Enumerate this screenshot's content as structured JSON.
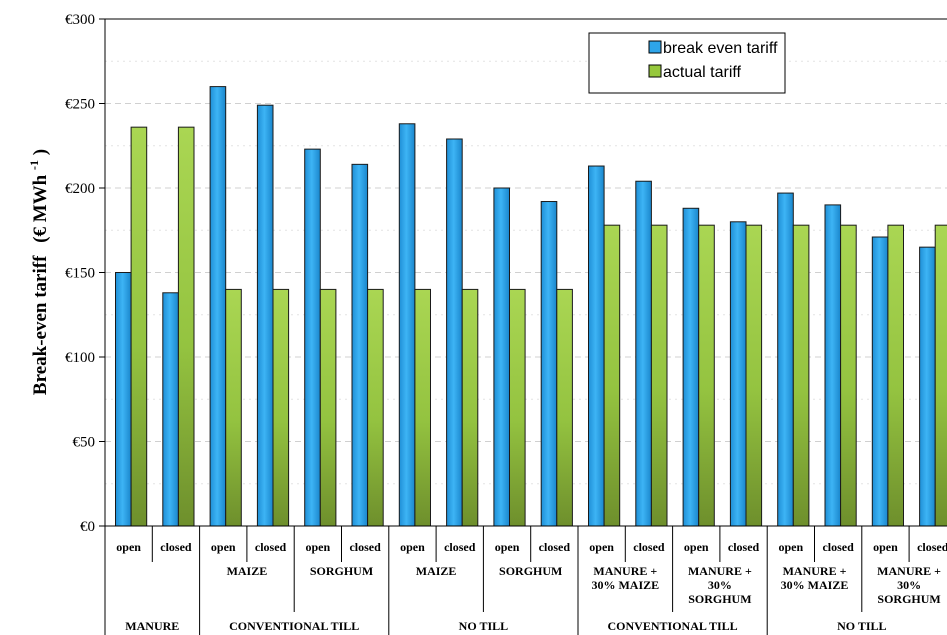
{
  "chart_data": {
    "type": "bar",
    "ylabel": "Break-even tariff",
    "ylabel_unit": "(€ MWh",
    "ylabel_sup": "-1",
    "ylabel_close": ")",
    "ylim": [
      0,
      300
    ],
    "yticks": [
      {
        "value": 0,
        "label": "€0"
      },
      {
        "value": 50,
        "label": "€50"
      },
      {
        "value": 100,
        "label": "€100"
      },
      {
        "value": 150,
        "label": "€150"
      },
      {
        "value": 200,
        "label": "€200"
      },
      {
        "value": 250,
        "label": "€250"
      },
      {
        "value": 300,
        "label": "€300"
      }
    ],
    "grid": true,
    "legend_position": "top-right",
    "categories": [
      "open",
      "closed",
      "open",
      "closed",
      "open",
      "closed",
      "open",
      "closed",
      "open",
      "closed",
      "open",
      "closed",
      "open",
      "closed",
      "open",
      "closed",
      "open",
      "closed"
    ],
    "series": [
      {
        "name": "break even tariff",
        "color": "#2ea5ea",
        "values": [
          150,
          138,
          260,
          249,
          223,
          214,
          238,
          229,
          200,
          192,
          213,
          204,
          188,
          180,
          197,
          190,
          171,
          165
        ]
      },
      {
        "name": "actual tariff",
        "color": "#96c83c",
        "values": [
          236,
          236,
          140,
          140,
          140,
          140,
          140,
          140,
          140,
          140,
          178,
          178,
          178,
          178,
          178,
          178,
          178,
          178
        ]
      }
    ],
    "crop_groups": [
      {
        "lines": [
          ""
        ]
      },
      {
        "lines": [
          "MAIZE"
        ]
      },
      {
        "lines": [
          "SORGHUM"
        ]
      },
      {
        "lines": [
          "MAIZE"
        ]
      },
      {
        "lines": [
          "SORGHUM"
        ]
      },
      {
        "lines": [
          "MANURE +",
          "30% MAIZE"
        ]
      },
      {
        "lines": [
          "MANURE +",
          "30%",
          "SORGHUM"
        ]
      },
      {
        "lines": [
          "MANURE +",
          "30% MAIZE"
        ]
      },
      {
        "lines": [
          "MANURE +",
          "30%",
          "SORGHUM"
        ]
      }
    ],
    "tillage_groups": [
      {
        "label": "MANURE",
        "span": 1
      },
      {
        "label": "CONVENTIONAL TILL",
        "span": 2
      },
      {
        "label": "NO TILL",
        "span": 2
      },
      {
        "label": "CONVENTIONAL TILL",
        "span": 2
      },
      {
        "label": "NO TILL",
        "span": 2
      }
    ]
  }
}
